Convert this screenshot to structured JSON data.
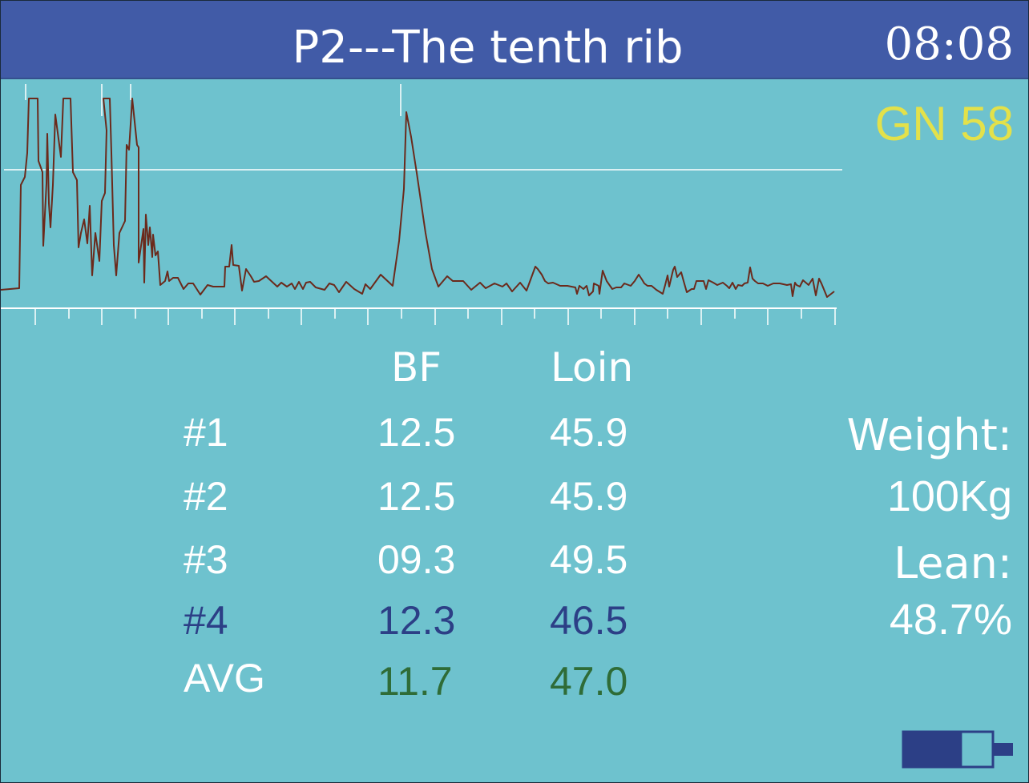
{
  "header": {
    "title": "P2---The tenth rib",
    "clock": "08:08"
  },
  "gn_label": "GN 58",
  "table": {
    "columns": [
      "BF",
      "Loin"
    ],
    "rows": [
      {
        "label": "#1",
        "bf": "12.5",
        "loin": "45.9",
        "color": "#ffffff"
      },
      {
        "label": "#2",
        "bf": "12.5",
        "loin": "45.9",
        "color": "#ffffff"
      },
      {
        "label": "#3",
        "bf": "09.3",
        "loin": "49.5",
        "color": "#ffffff"
      },
      {
        "label": "#4",
        "bf": "12.3",
        "loin": "46.5",
        "color": "#2c3f86"
      },
      {
        "label": "AVG",
        "bf": "11.7",
        "loin": "47.0",
        "color": "#2f6c37"
      }
    ]
  },
  "side": {
    "weight_label": "Weight:",
    "weight_value": "100Kg",
    "lean_label": "Lean:",
    "lean_value": "48.7%"
  },
  "battery": {
    "level": 0.66
  },
  "colors": {
    "background": "#6ec2ce",
    "header": "#415ba7",
    "gn": "#e3e14a",
    "signal": "#6b2a1c"
  }
}
